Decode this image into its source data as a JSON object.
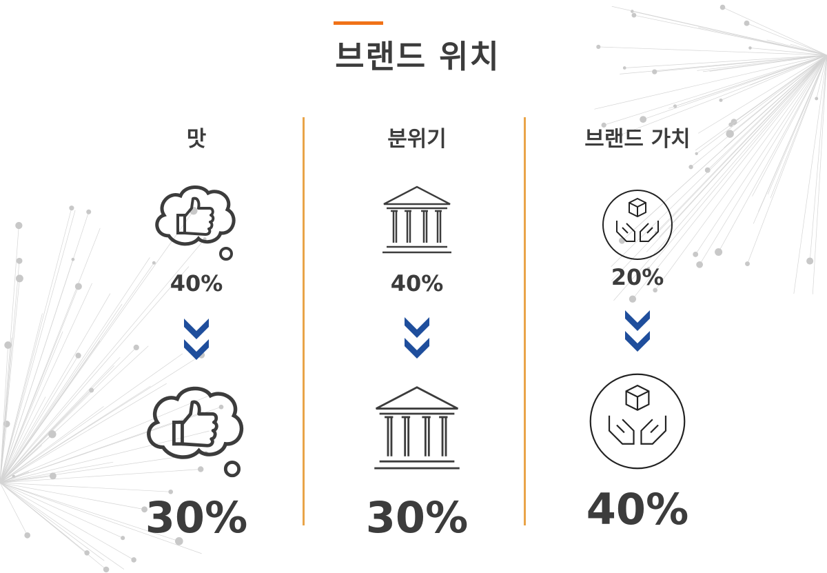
{
  "title": "브랜드 위치",
  "colors": {
    "accent": "#f07218",
    "divider": "#e9a448",
    "chevron": "#1f4e9c",
    "text": "#3c3c3c"
  },
  "columns": [
    {
      "heading": "맛",
      "icon": "thumbs-up-thought-cloud-icon",
      "before": "40%",
      "after": "30%"
    },
    {
      "heading": "분위기",
      "icon": "classical-building-icon",
      "before": "40%",
      "after": "30%"
    },
    {
      "heading": "브랜드 가치",
      "icon": "hands-holding-box-icon",
      "before": "20%",
      "after": "40%"
    }
  ]
}
